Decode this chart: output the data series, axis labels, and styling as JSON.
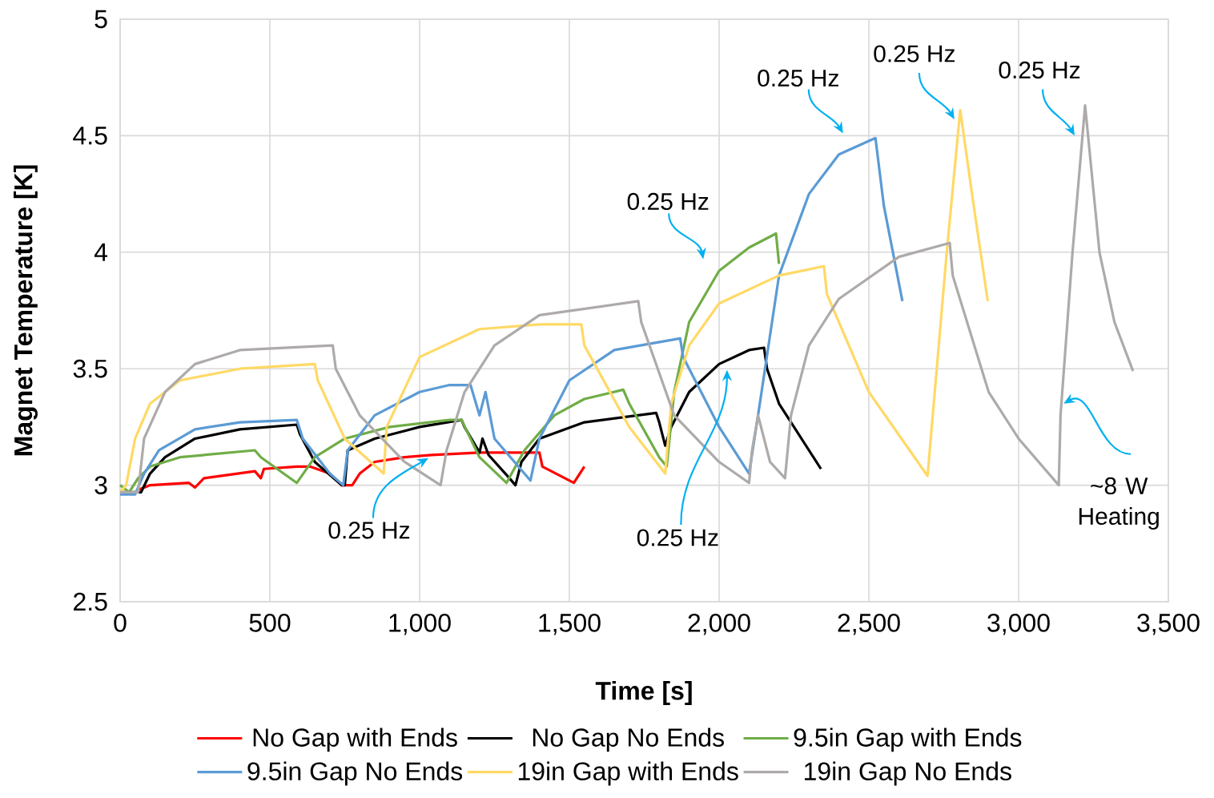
{
  "chart_data": {
    "type": "line",
    "xlabel": "Time [s]",
    "ylabel": "Magnet Temperature [K]",
    "xlim": [
      0,
      3500
    ],
    "ylim": [
      2.5,
      5
    ],
    "xticks": [
      0,
      500,
      {
        "value": 1000,
        "label": "1,000"
      },
      {
        "value": 1500,
        "label": "1,500"
      },
      {
        "value": 2000,
        "label": "2,000"
      },
      {
        "value": 2500,
        "label": "2,500"
      },
      {
        "value": 3000,
        "label": "3,000"
      },
      {
        "value": 3500,
        "label": "3,500"
      }
    ],
    "yticks": [
      2.5,
      3,
      3.5,
      4,
      4.5,
      5
    ],
    "grid": true,
    "legend": "bottom",
    "marker": "none",
    "line_style": "solid",
    "series": [
      {
        "name": "No Gap with Ends",
        "color": "#ff0000",
        "x": [
          60,
          100,
          230,
          250,
          280,
          450,
          470,
          480,
          590,
          634,
          700,
          740,
          775,
          800,
          850,
          950,
          1040,
          1200,
          1400,
          1410,
          1515,
          1550
        ],
        "values": [
          2.98,
          3.0,
          3.01,
          2.99,
          3.03,
          3.06,
          3.03,
          3.07,
          3.08,
          3.08,
          3.05,
          3.0,
          3.0,
          3.05,
          3.1,
          3.12,
          3.13,
          3.14,
          3.14,
          3.08,
          3.01,
          3.08
        ]
      },
      {
        "name": "No Gap No Ends",
        "color": "#000000",
        "x": [
          0,
          70,
          100,
          150,
          250,
          400,
          590,
          600,
          650,
          740,
          750,
          760,
          850,
          1000,
          1140,
          1150,
          1200,
          1210,
          1230,
          1300,
          1320,
          1340,
          1400,
          1550,
          1790,
          1800,
          1820,
          1840,
          1900,
          2000,
          2100,
          2150,
          2160,
          2200,
          2340
        ],
        "values": [
          2.97,
          2.97,
          3.05,
          3.12,
          3.2,
          3.24,
          3.26,
          3.22,
          3.1,
          3.0,
          3.0,
          3.15,
          3.2,
          3.25,
          3.28,
          3.25,
          3.14,
          3.2,
          3.13,
          3.03,
          3.0,
          3.1,
          3.2,
          3.27,
          3.31,
          3.27,
          3.17,
          3.25,
          3.4,
          3.52,
          3.58,
          3.59,
          3.5,
          3.35,
          3.07
        ]
      },
      {
        "name": "9.5in Gap with Ends",
        "color": "#70ad47",
        "x": [
          0,
          30,
          60,
          100,
          200,
          450,
          470,
          590,
          650,
          750,
          900,
          1100,
          1140,
          1200,
          1290,
          1350,
          1450,
          1550,
          1680,
          1700,
          1800,
          1825,
          1850,
          1900,
          2000,
          2100,
          2190,
          2200
        ],
        "values": [
          3.0,
          2.97,
          3.03,
          3.08,
          3.12,
          3.15,
          3.12,
          3.01,
          3.12,
          3.2,
          3.25,
          3.28,
          3.28,
          3.12,
          3.01,
          3.15,
          3.3,
          3.37,
          3.41,
          3.35,
          3.12,
          3.08,
          3.4,
          3.7,
          3.92,
          4.02,
          4.08,
          3.95
        ]
      },
      {
        "name": "9.5in Gap No Ends",
        "color": "#5b9bd5",
        "x": [
          0,
          50,
          80,
          130,
          250,
          400,
          590,
          610,
          700,
          745,
          760,
          850,
          1000,
          1100,
          1170,
          1200,
          1220,
          1250,
          1370,
          1400,
          1500,
          1650,
          1870,
          1880,
          2000,
          2100,
          2130,
          2200,
          2300,
          2400,
          2522,
          2550,
          2612
        ],
        "values": [
          2.96,
          2.96,
          3.05,
          3.15,
          3.24,
          3.27,
          3.28,
          3.2,
          3.05,
          3.0,
          3.15,
          3.3,
          3.4,
          3.43,
          3.43,
          3.3,
          3.4,
          3.2,
          3.02,
          3.2,
          3.45,
          3.58,
          3.63,
          3.55,
          3.25,
          3.05,
          3.3,
          3.9,
          4.25,
          4.42,
          4.49,
          4.2,
          3.79
        ]
      },
      {
        "name": "19in Gap with Ends",
        "color": "#ffd966",
        "x": [
          0,
          20,
          50,
          100,
          200,
          400,
          650,
          660,
          750,
          880,
          890,
          1000,
          1200,
          1400,
          1540,
          1550,
          1700,
          1820,
          1840,
          1900,
          2000,
          2200,
          2350,
          2360,
          2500,
          2696,
          2760,
          2805,
          2850,
          2897
        ],
        "values": [
          2.97,
          3.0,
          3.2,
          3.35,
          3.45,
          3.5,
          3.52,
          3.45,
          3.2,
          3.05,
          3.25,
          3.55,
          3.67,
          3.69,
          3.69,
          3.6,
          3.25,
          3.05,
          3.35,
          3.6,
          3.78,
          3.9,
          3.94,
          3.82,
          3.4,
          3.04,
          4.0,
          4.61,
          4.2,
          3.79
        ]
      },
      {
        "name": "19in Gap No Ends",
        "color": "#aeaaaa",
        "x": [
          0,
          60,
          80,
          150,
          250,
          400,
          710,
          720,
          800,
          950,
          1070,
          1090,
          1150,
          1250,
          1400,
          1730,
          1740,
          1850,
          2000,
          2100,
          2110,
          2130,
          2170,
          2220,
          2240,
          2300,
          2400,
          2600,
          2770,
          2780,
          2900,
          3000,
          3134,
          3140,
          3180,
          3222,
          3270,
          3320,
          3382
        ],
        "values": [
          2.97,
          2.97,
          3.2,
          3.4,
          3.52,
          3.58,
          3.6,
          3.5,
          3.3,
          3.1,
          3.0,
          3.15,
          3.4,
          3.6,
          3.73,
          3.79,
          3.7,
          3.3,
          3.1,
          3.01,
          3.15,
          3.3,
          3.1,
          3.03,
          3.3,
          3.6,
          3.8,
          3.98,
          4.04,
          3.9,
          3.4,
          3.2,
          3.0,
          3.3,
          4.0,
          4.63,
          4.0,
          3.7,
          3.49
        ]
      }
    ],
    "annotations": [
      {
        "text": "0.25 Hz",
        "x": 1040,
        "y": 3.13
      },
      {
        "text": "0.25 Hz",
        "x": 2000,
        "y": 3.92
      },
      "0.25 Hz",
      {
        "text": "0.25 Hz",
        "x": 2400,
        "y": 4.42
      },
      {
        "text": "0.25 Hz",
        "x": 2805,
        "y": 4.61
      },
      {
        "text": "0.25 Hz",
        "x": 3222,
        "y": 4.63
      },
      {
        "text": "~8 W Heating",
        "x": 3140,
        "y": 3.3
      }
    ]
  }
}
